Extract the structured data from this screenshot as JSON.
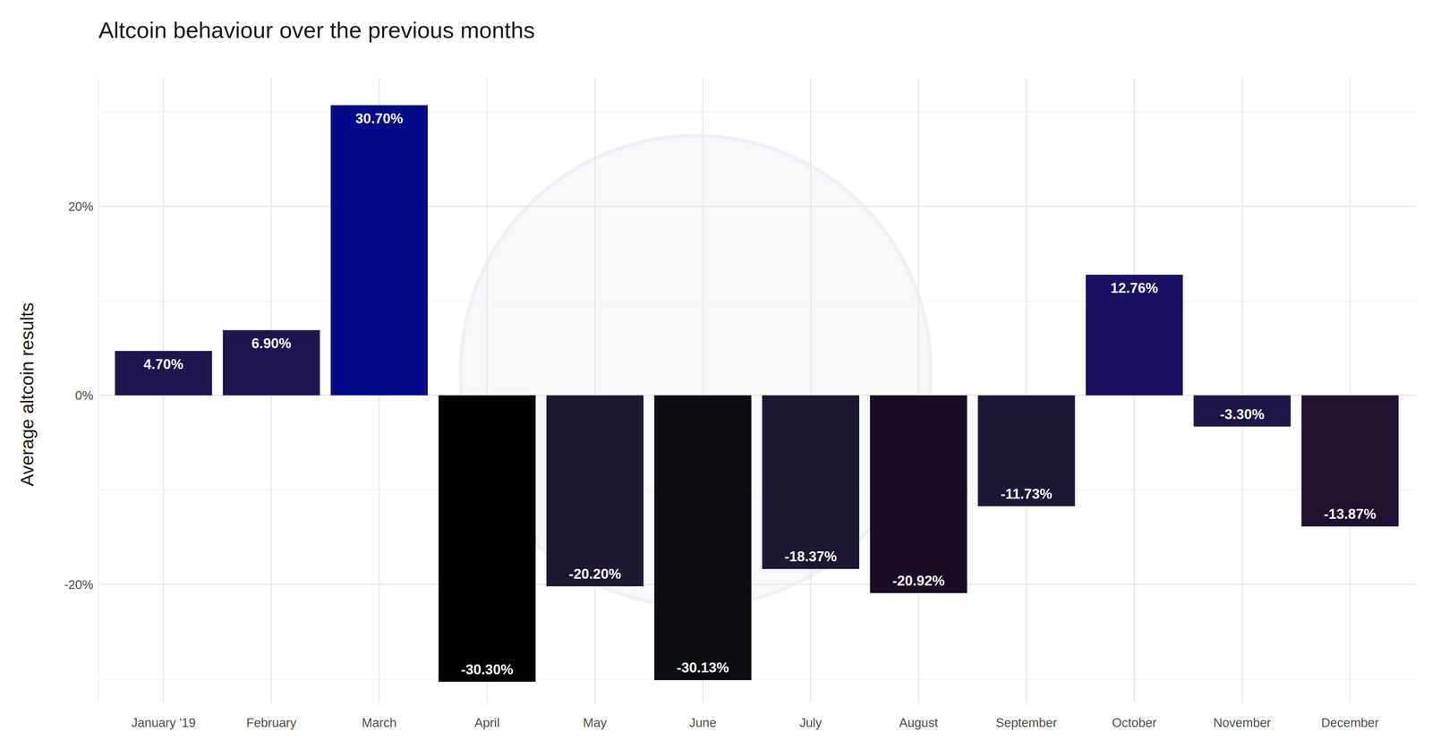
{
  "chart_data": {
    "type": "bar",
    "title": "Altcoin behaviour over the previous months",
    "y_label": "Average altcoin results",
    "categories": [
      "January '19",
      "February",
      "March",
      "April",
      "May",
      "June",
      "July",
      "August",
      "September",
      "October",
      "November",
      "December"
    ],
    "values": [
      4.7,
      6.9,
      30.7,
      -30.3,
      -20.2,
      -30.13,
      -18.37,
      -20.92,
      -11.73,
      12.76,
      -3.3,
      -13.87
    ],
    "value_labels": [
      "4.70%",
      "6.90%",
      "30.70%",
      "-30.30%",
      "-20.20%",
      "-30.13%",
      "-18.37%",
      "-20.92%",
      "-11.73%",
      "12.76%",
      "-3.30%",
      "-13.87%"
    ],
    "colors": [
      "#1f1650",
      "#1f1650",
      "#020a8c",
      "#010101",
      "#1e1833",
      "#0d0e12",
      "#1e1733",
      "#1a0d26",
      "#1e1838",
      "#1a1163",
      "#1e1745",
      "#1e1230"
    ],
    "ylim": [
      -32.6,
      33.6
    ],
    "yticks": [
      {
        "value": -20,
        "label": "-20%"
      },
      {
        "value": 0,
        "label": "0%"
      },
      {
        "value": 20,
        "label": "20%"
      }
    ],
    "grid": true,
    "data_labels": true
  }
}
